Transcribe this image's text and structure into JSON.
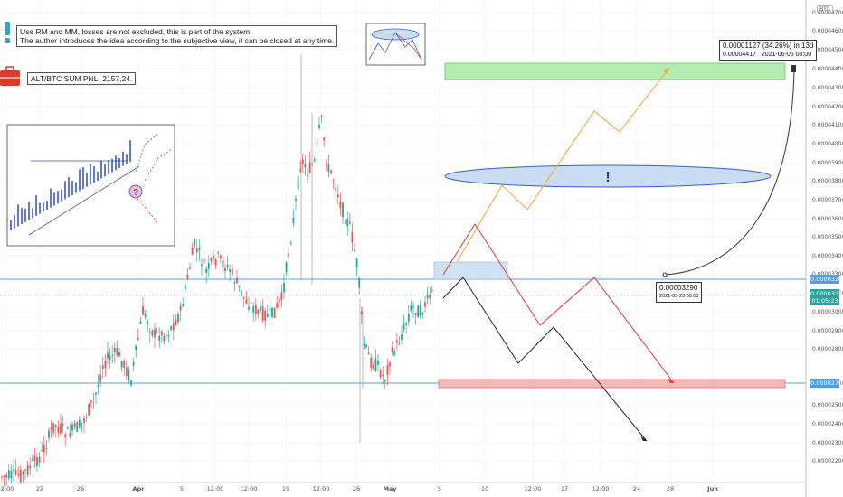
{
  "notes": {
    "line1": "Use RM and MM, losses are not excluded, this is part of the system.",
    "line2": "The author introduces the idea according to the subjective view, it can be closed at any time.",
    "pnl": "ALT/BTC SUM PNL: 2157,24."
  },
  "axis": {
    "currency": "BTC",
    "y_ticks": [
      "0.00004700",
      "0.00004600",
      "0.00004500",
      "0.00004400",
      "0.00004300",
      "0.00004200",
      "0.00004100",
      "0.00004000",
      "0.00003900",
      "0.00003800",
      "0.00003700",
      "0.00003600",
      "0.00003500",
      "0.00003400",
      "0.00003300",
      "0.00003268",
      "0.00003200",
      "0.00003177",
      "01:05:23",
      "0.00003000",
      "0.00002900",
      "0.00002800",
      "0.00002700",
      "0.00002600",
      "0.00002500",
      "0.00002400",
      "0.00002300",
      "0.00002200"
    ],
    "x_ticks": [
      "12:00",
      "22",
      "26",
      "Apr",
      "5",
      "12:00",
      "12:00",
      "19",
      "12:00",
      "26",
      "May",
      "5",
      "10",
      "12:00",
      "17",
      "12:00",
      "24",
      "28",
      "Jun"
    ]
  },
  "price_tags": {
    "level_top": "0.00003268",
    "current": "0.00003177",
    "countdown": "01:05:23",
    "level_bottom": "0.00002700"
  },
  "measure_start": {
    "value": "0.00003290",
    "date": "2021-05-23 08:00"
  },
  "measure_end": {
    "main": "0.00001127 (34.26%) in 13d",
    "value": "0.00004417",
    "date": "2021-06-05 08:00"
  },
  "markers": {
    "exclamation": "!",
    "question": "?"
  },
  "colors": {
    "up": "#26a69a",
    "down": "#ef5350",
    "bg": "#ffffff",
    "green_zone": "#b5ecb0",
    "red_zone": "#f4b8b8",
    "blue_zone": "#cfe2f3",
    "ellipse": "#c9dcf2",
    "orange_path": "#f4a340",
    "red_path": "#e53935",
    "black_path": "#222222"
  },
  "chart_data": {
    "type": "candlestick",
    "symbol_currency": "BTC",
    "horizontal_levels": [
      3.268e-05,
      2.7e-05
    ],
    "current_price": 3.177e-05,
    "zones": [
      {
        "name": "target-green",
        "from": 4.36e-05,
        "to": 4.45e-05
      },
      {
        "name": "stop-red",
        "from": 2.68e-05,
        "to": 2.72e-05
      },
      {
        "name": "entry-blue",
        "from": 3.26e-05,
        "to": 3.34e-05
      }
    ],
    "projection": {
      "start": 3.29e-05,
      "end": 4.417e-05,
      "change": 1.127e-05,
      "change_pct": 34.26,
      "days": 13
    }
  }
}
